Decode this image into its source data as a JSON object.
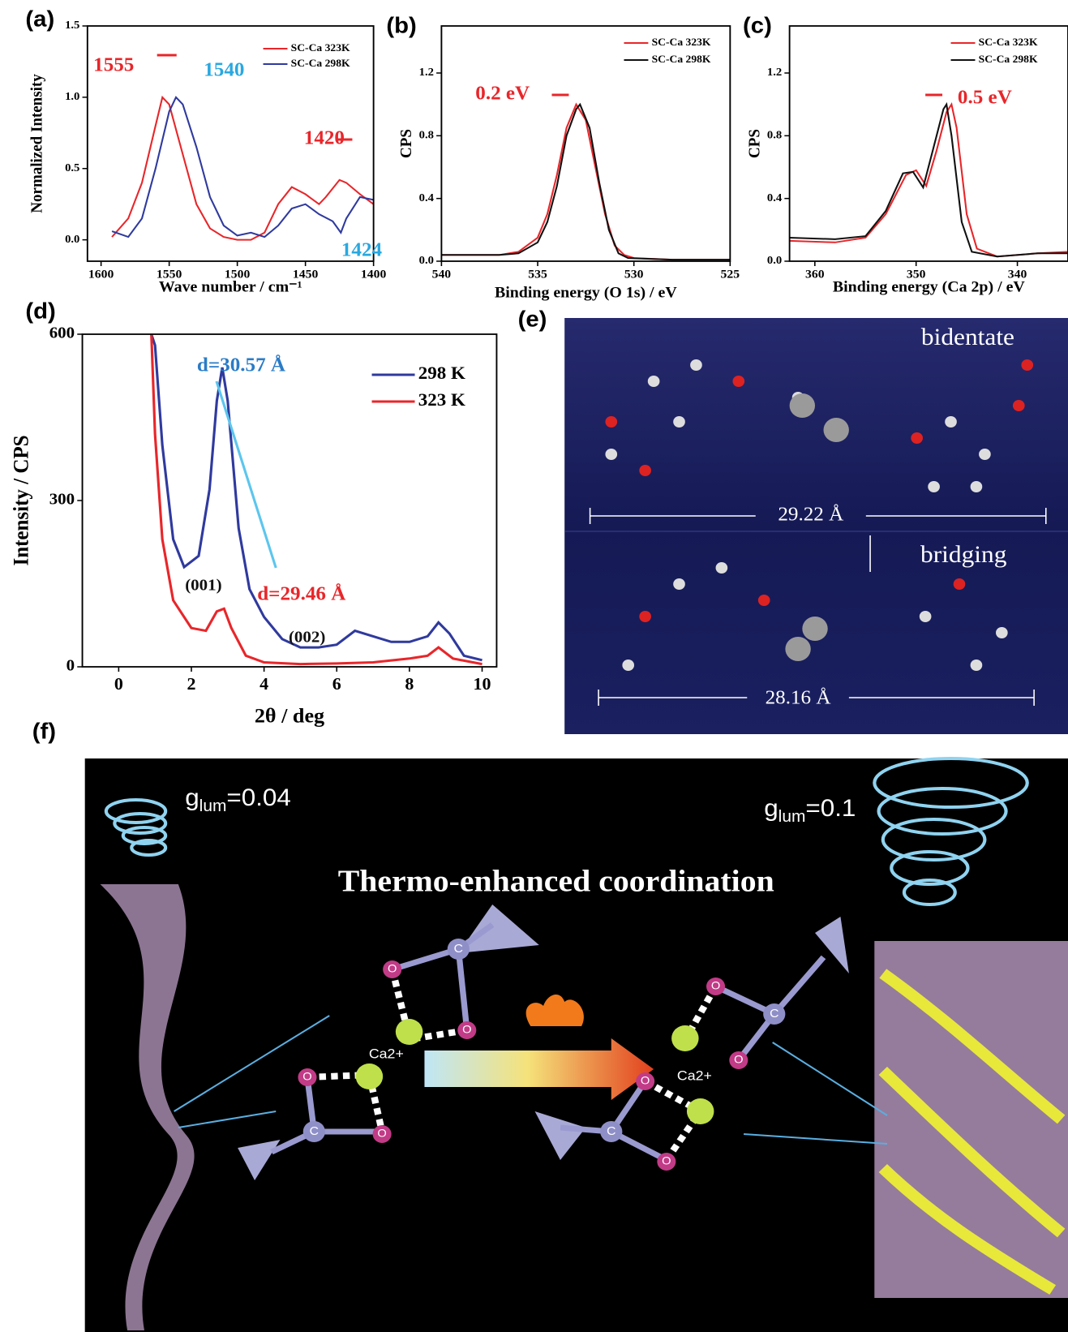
{
  "chart_data": [
    {
      "type": "line",
      "label": "(a)",
      "xlabel": "Wave number / cm⁻¹",
      "ylabel": "Normalized Intensity",
      "xlim": [
        1610,
        1400
      ],
      "xticks": [
        1600,
        1550,
        1500,
        1450,
        1400
      ],
      "ylim": [
        -0.15,
        1.5
      ],
      "yticks": [
        {
          "value": 0,
          "label": "0.0"
        },
        0.5,
        {
          "value": 1,
          "label": "1.0"
        },
        1.5
      ],
      "series": [
        {
          "name": "SC-Ca 323K",
          "color": "#e8262a",
          "x": [
            1592,
            1580,
            1570,
            1560,
            1555,
            1550,
            1540,
            1530,
            1520,
            1510,
            1500,
            1490,
            1480,
            1470,
            1460,
            1450,
            1440,
            1435,
            1425,
            1420,
            1410,
            1400
          ],
          "values": [
            0.02,
            0.15,
            0.4,
            0.8,
            1.0,
            0.95,
            0.6,
            0.25,
            0.08,
            0.02,
            0.0,
            0.0,
            0.05,
            0.25,
            0.37,
            0.32,
            0.25,
            0.3,
            0.42,
            0.4,
            0.32,
            0.25
          ]
        },
        {
          "name": "SC-Ca 298K",
          "color": "#2f3a9e",
          "x": [
            1592,
            1580,
            1570,
            1560,
            1550,
            1545,
            1540,
            1530,
            1520,
            1510,
            1500,
            1490,
            1480,
            1470,
            1460,
            1450,
            1440,
            1430,
            1424,
            1420,
            1410,
            1400
          ],
          "values": [
            0.06,
            0.02,
            0.15,
            0.5,
            0.9,
            1.0,
            0.95,
            0.65,
            0.3,
            0.1,
            0.03,
            0.05,
            0.02,
            0.1,
            0.22,
            0.25,
            0.18,
            0.13,
            0.05,
            0.15,
            0.3,
            0.28
          ]
        }
      ],
      "annotations": [
        {
          "text": "1555",
          "color": "#e8262a"
        },
        {
          "text": "1540",
          "color": "#29a8e0"
        },
        {
          "text": "1420",
          "color": "#e8262a"
        },
        {
          "text": "1424",
          "color": "#29a8e0"
        }
      ]
    },
    {
      "type": "line",
      "label": "(b)",
      "xlabel": "Binding energy (O 1s)  / eV",
      "ylabel": "CPS",
      "xlim": [
        540,
        525
      ],
      "xticks": [
        540,
        535,
        530,
        525
      ],
      "ylim": [
        0,
        1.5
      ],
      "yticks": [
        {
          "value": 0,
          "label": "0.0"
        },
        0.4,
        0.8,
        1.2
      ],
      "series": [
        {
          "name": "SC-Ca 323K",
          "color": "#e8262a",
          "x": [
            540,
            537,
            536,
            535,
            534.5,
            534,
            533.5,
            533,
            532.5,
            532,
            531.5,
            531,
            530.5,
            530,
            528,
            525
          ],
          "values": [
            0.04,
            0.04,
            0.06,
            0.15,
            0.3,
            0.55,
            0.85,
            1.0,
            0.9,
            0.6,
            0.3,
            0.1,
            0.04,
            0.02,
            0.01,
            0.01
          ]
        },
        {
          "name": "SC-Ca 298K",
          "color": "#111111",
          "x": [
            540,
            537,
            536,
            535,
            534.5,
            534,
            533.5,
            533,
            532.8,
            532.3,
            531.8,
            531.3,
            530.8,
            530.3,
            528,
            525
          ],
          "values": [
            0.04,
            0.04,
            0.05,
            0.12,
            0.25,
            0.48,
            0.8,
            0.97,
            1.0,
            0.85,
            0.5,
            0.2,
            0.05,
            0.02,
            0.01,
            0.01
          ]
        }
      ],
      "annotations": [
        {
          "text": "0.2 eV",
          "color": "#e8262a"
        }
      ]
    },
    {
      "type": "line",
      "label": "(c)",
      "xlabel": "Binding energy (Ca 2p) / eV",
      "ylabel": "CPS",
      "xlim": [
        362.5,
        335
      ],
      "xticks": [
        360,
        350,
        340
      ],
      "ylim": [
        0,
        1.5
      ],
      "yticks": [
        {
          "value": 0,
          "label": "0.0"
        },
        0.4,
        0.8,
        1.2
      ],
      "series": [
        {
          "name": "SC-Ca 323K",
          "color": "#e8262a",
          "x": [
            362.5,
            358,
            355,
            353,
            351,
            350,
            349,
            348,
            347,
            346.5,
            346,
            345,
            344,
            342,
            338,
            335
          ],
          "values": [
            0.13,
            0.12,
            0.15,
            0.3,
            0.55,
            0.58,
            0.48,
            0.7,
            0.95,
            1.0,
            0.85,
            0.3,
            0.08,
            0.03,
            0.05,
            0.06
          ]
        },
        {
          "name": "SC-Ca 298K",
          "color": "#111111",
          "x": [
            362.5,
            358,
            355,
            353,
            351.3,
            350.3,
            349.3,
            348.3,
            347.3,
            347,
            346.5,
            345.5,
            344.5,
            342,
            338,
            335
          ],
          "values": [
            0.15,
            0.14,
            0.16,
            0.32,
            0.56,
            0.57,
            0.47,
            0.72,
            0.97,
            1.0,
            0.8,
            0.25,
            0.06,
            0.03,
            0.05,
            0.05
          ]
        }
      ],
      "annotations": [
        {
          "text": "0.5 eV",
          "color": "#e8262a"
        }
      ]
    },
    {
      "type": "line",
      "label": "(d)",
      "xlabel": "2θ / deg",
      "ylabel": "Intensity / CPS",
      "xlim": [
        -1,
        10.4
      ],
      "xticks": [
        0,
        2,
        4,
        6,
        8,
        10
      ],
      "ylim": [
        0,
        600
      ],
      "yticks": [
        0,
        300,
        600
      ],
      "series": [
        {
          "name": "298 K",
          "color": "#2f3a9e",
          "x": [
            0.9,
            1.0,
            1.2,
            1.5,
            1.8,
            2.2,
            2.5,
            2.7,
            2.85,
            3.0,
            3.3,
            3.6,
            4,
            4.5,
            5,
            5.5,
            6,
            6.5,
            7,
            7.5,
            8,
            8.5,
            8.8,
            9.1,
            9.5,
            10
          ],
          "values": [
            600,
            580,
            400,
            230,
            180,
            200,
            320,
            480,
            540,
            480,
            250,
            140,
            90,
            50,
            35,
            35,
            40,
            65,
            55,
            45,
            45,
            55,
            80,
            60,
            20,
            12
          ]
        },
        {
          "name": "323 K",
          "color": "#e8262a",
          "x": [
            0.9,
            1.0,
            1.2,
            1.5,
            2,
            2.4,
            2.7,
            2.9,
            3.1,
            3.5,
            4,
            5,
            6,
            7,
            8,
            8.5,
            8.8,
            9.2,
            10
          ],
          "values": [
            600,
            420,
            230,
            120,
            70,
            65,
            100,
            105,
            70,
            20,
            8,
            5,
            6,
            8,
            15,
            20,
            35,
            15,
            5
          ]
        }
      ],
      "annotations": [
        {
          "text": "d=30.57 Å",
          "color": "#2a7cc7"
        },
        {
          "text": "d=29.46 Å",
          "color": "#e8262a"
        },
        {
          "text": "(001)",
          "color": "#111111"
        },
        {
          "text": "(002)",
          "color": "#111111"
        }
      ]
    }
  ],
  "panel_e": {
    "label": "(e)",
    "top": "bidentate",
    "top_distance": "29.22 Å",
    "bottom": "bridging",
    "bottom_distance": "28.16 Å"
  },
  "panel_f": {
    "label": "(f)",
    "title": "Thermo-enhanced coordination",
    "left_g": "g",
    "left_sub": "lum",
    "left_value": "=0.04",
    "right_g": "g",
    "right_sub": "lum",
    "right_value": "=0.1",
    "ion_left": "Ca2+",
    "ion_right": "Ca2+",
    "oxygen": "O",
    "carbon": "C"
  }
}
